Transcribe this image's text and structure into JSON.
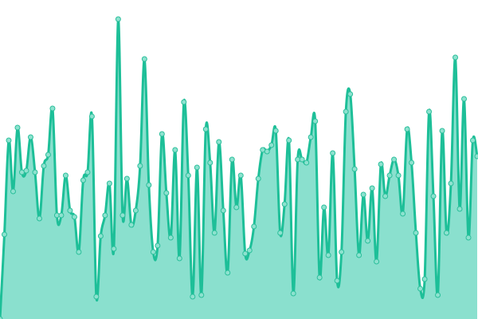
{
  "chart_data": {
    "type": "area",
    "title": "",
    "xlabel": "",
    "ylabel": "",
    "ylim": [
      0,
      100
    ],
    "grid": false,
    "legend": "none",
    "curve": "smooth",
    "colors": {
      "line": "#1dbf98",
      "fill": "#8ae0ce",
      "point_fill": "#8de2cf",
      "point_stroke": "#2bbf9b"
    },
    "values": [
      0,
      26.5,
      56,
      40,
      60,
      46,
      46.5,
      57,
      46,
      31.5,
      48,
      51.5,
      66,
      32.5,
      32.5,
      45,
      34,
      32,
      21,
      43.5,
      46,
      63.5,
      7,
      26,
      32.5,
      42.5,
      22,
      94,
      32.5,
      44,
      29.5,
      34,
      48,
      81.5,
      42,
      21,
      23,
      58,
      39.5,
      25.5,
      53,
      19,
      68,
      45,
      7,
      47.5,
      7.5,
      59.5,
      49,
      27,
      55.5,
      34,
      14.5,
      50,
      35,
      45,
      20.5,
      21.5,
      29,
      44,
      53,
      52.5,
      54.5,
      59,
      27,
      36,
      56,
      8,
      50,
      50,
      49,
      57,
      62,
      13,
      35,
      20,
      52,
      12,
      21,
      65,
      70.5,
      47,
      20,
      39,
      24.5,
      41,
      18,
      48.5,
      38.5,
      45,
      50,
      45,
      33,
      59.5,
      49,
      27,
      9.5,
      12.5,
      65,
      38.5,
      7.5,
      59,
      27,
      42.5,
      82,
      34.5,
      69,
      25.5,
      56,
      51
    ]
  }
}
